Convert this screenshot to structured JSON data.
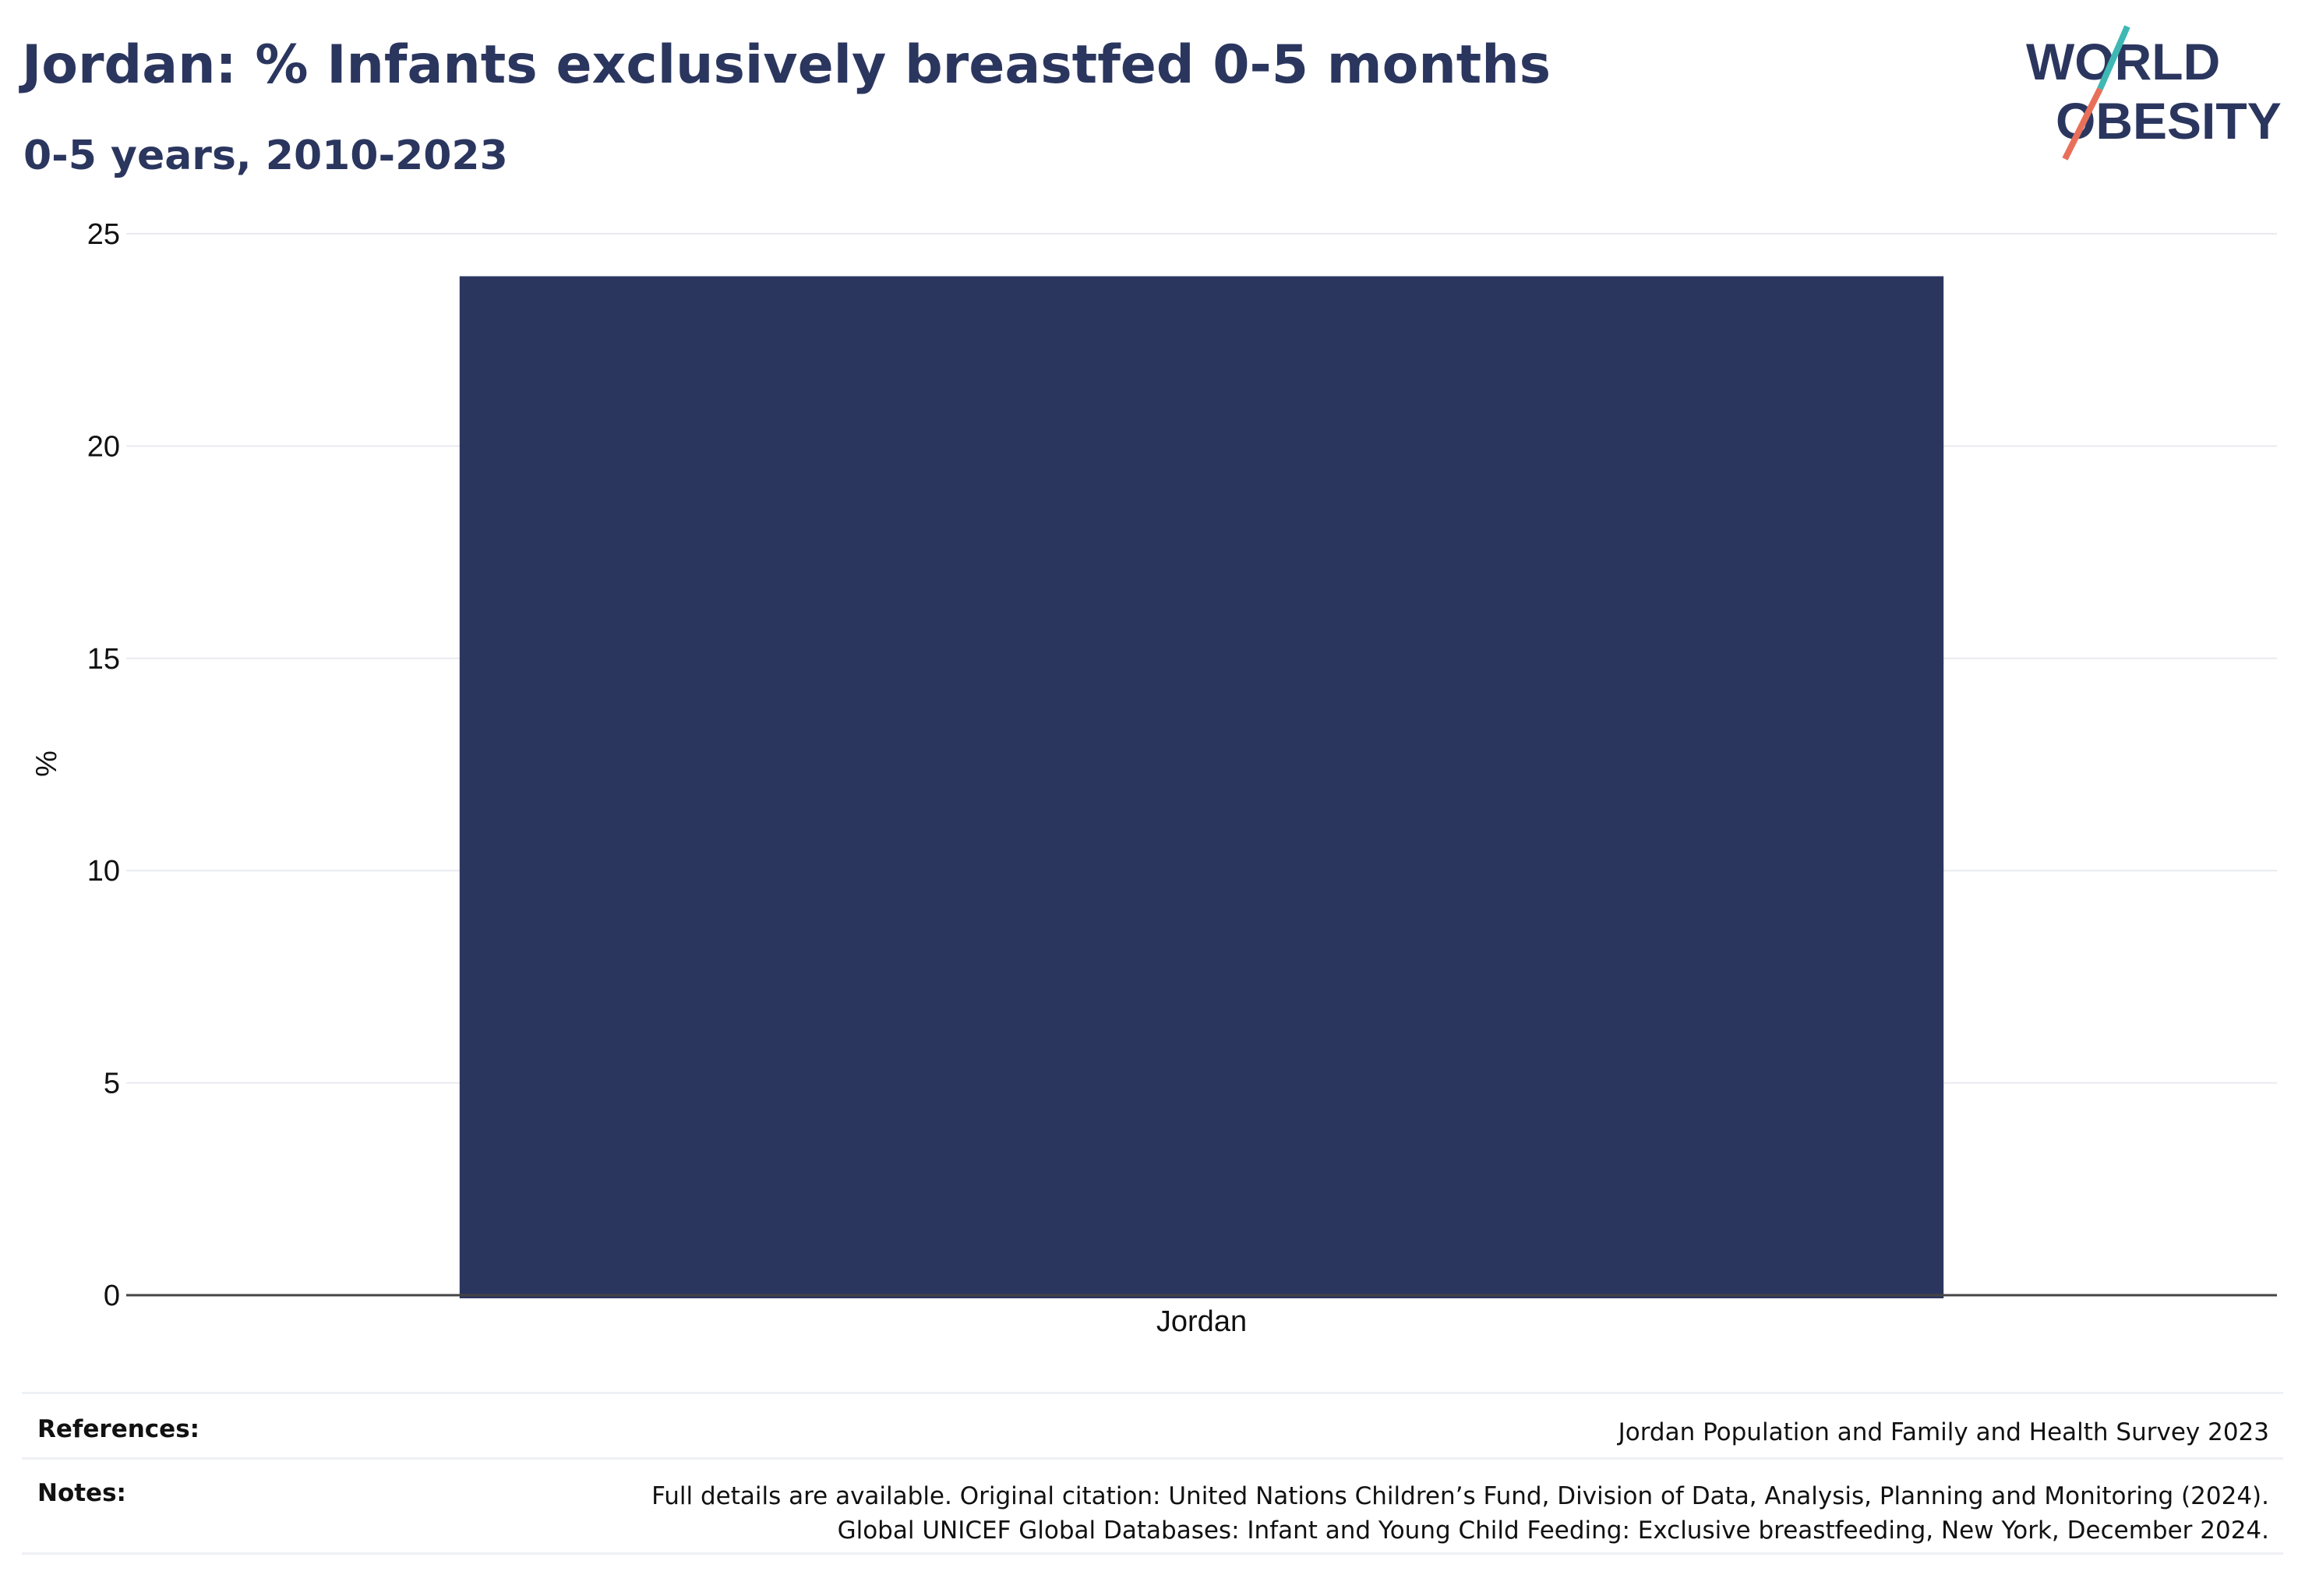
{
  "header": {
    "title": "Jordan: % Infants exclusively breastfed 0-5 months",
    "subtitle": "0-5 years, 2010-2023"
  },
  "logo": {
    "line1": "WORLD",
    "line2": "OBESITY",
    "colors": {
      "text": "#2b365f",
      "slash_top": "#3fb8b3",
      "slash_bottom": "#e8705a"
    }
  },
  "chart_data": {
    "type": "bar",
    "categories": [
      "Jordan"
    ],
    "values": [
      24
    ],
    "ylabel": "%",
    "ylim": [
      0,
      25
    ],
    "yticks": [
      0,
      5,
      10,
      15,
      20,
      25
    ],
    "grid": true,
    "bar_color": "#2b365f"
  },
  "footer": {
    "references_label": "References:",
    "references_value": "Jordan Population and Family and Health Survey 2023",
    "notes_label": "Notes:",
    "notes_line1": "Full details are available. Original citation: United Nations Children’s Fund, Division of Data, Analysis, Planning and Monitoring (2024).",
    "notes_line2": "Global UNICEF Global Databases: Infant and Young Child Feeding: Exclusive breastfeeding, New York, December 2024."
  }
}
